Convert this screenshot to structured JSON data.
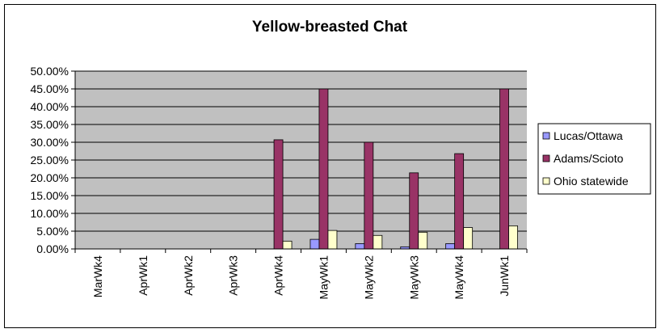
{
  "chart_data": {
    "type": "bar",
    "title": "Yellow-breasted Chat",
    "xlabel": "",
    "ylabel": "",
    "ylim": [
      0,
      0.5
    ],
    "ytick_values": [
      0,
      0.05,
      0.1,
      0.15,
      0.2,
      0.25,
      0.3,
      0.35,
      0.4,
      0.45,
      0.5
    ],
    "ytick_labels": [
      "0.00%",
      "5.00%",
      "10.00%",
      "15.00%",
      "20.00%",
      "25.00%",
      "30.00%",
      "35.00%",
      "40.00%",
      "45.00%",
      "50.00%"
    ],
    "categories": [
      "MarWk4",
      "AprWk1",
      "AprWk2",
      "AprWk3",
      "AprWk4",
      "MayWk1",
      "MayWk2",
      "MayWk3",
      "MayWk4",
      "JunWk1"
    ],
    "series": [
      {
        "name": "Lucas/Ottawa",
        "color": "#9999ff",
        "values": [
          0,
          0,
          0,
          0,
          0,
          0.027,
          0.015,
          0.006,
          0.015,
          0
        ]
      },
      {
        "name": "Adams/Scioto",
        "color": "#993366",
        "values": [
          0,
          0,
          0,
          0,
          0.307,
          0.45,
          0.3,
          0.214,
          0.268,
          0.45
        ]
      },
      {
        "name": "Ohio statewide",
        "color": "#ffffcc",
        "values": [
          0,
          0,
          0,
          0,
          0.022,
          0.052,
          0.038,
          0.047,
          0.06,
          0.065
        ]
      }
    ],
    "grid": true,
    "legend_position": "right",
    "plot_background": "#c0c0c0"
  }
}
